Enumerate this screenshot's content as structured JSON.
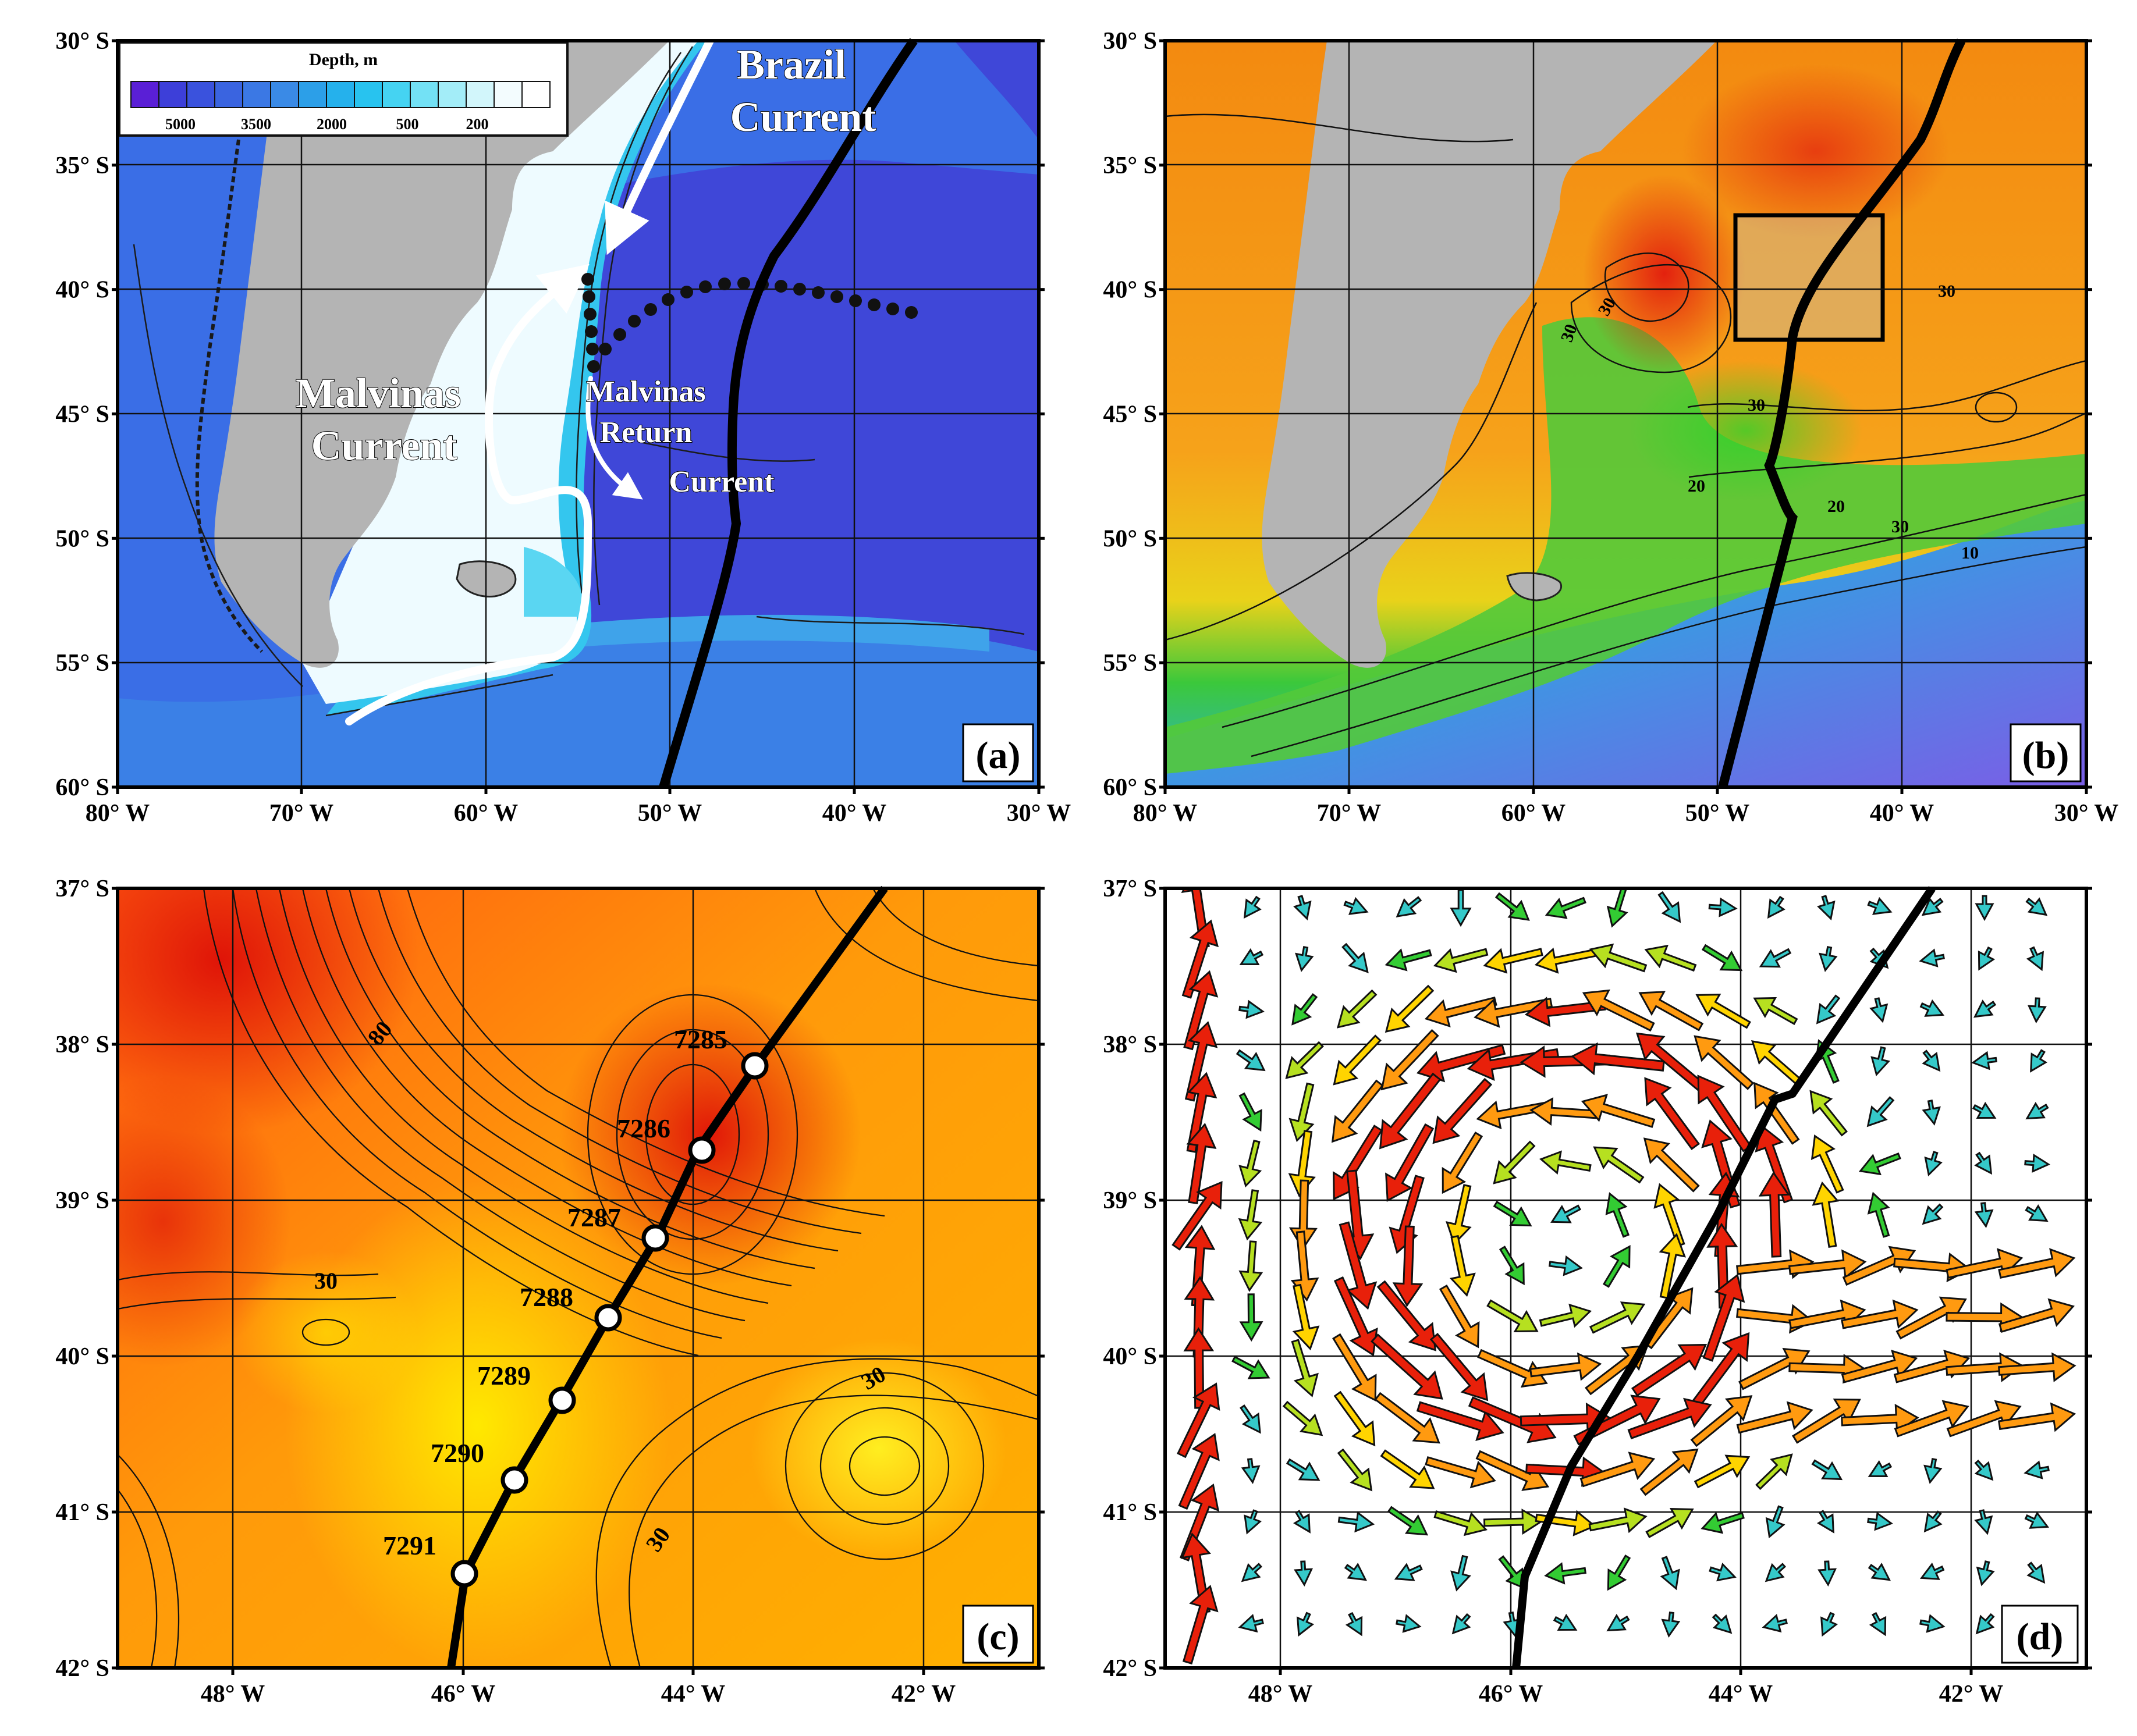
{
  "figure": {
    "panels": [
      {
        "id": "a",
        "label": "(a)",
        "lat_ticks": [
          "30° S",
          "35° S",
          "40° S",
          "45° S",
          "50° S",
          "55° S",
          "60° S"
        ],
        "lon_ticks": [
          "80° W",
          "70° W",
          "60° W",
          "50° W",
          "40° W",
          "30° W"
        ],
        "legend": {
          "title": "Depth, m",
          "labels": [
            "5000",
            "3500",
            "2000",
            "500",
            "200"
          ],
          "colors": [
            "#5a1fd6",
            "#3d3fd9",
            "#3a52dd",
            "#3a64e0",
            "#3b78e4",
            "#3a8ae6",
            "#2c9fe8",
            "#25b1ec",
            "#28c3ef",
            "#45d3f2",
            "#73e1f5",
            "#a3edf8",
            "#d2f6fb",
            "#f3fcfe",
            "#ffffff"
          ]
        },
        "annotations": {
          "brazil_current": [
            "Brazil",
            "Current"
          ],
          "malvinas_current": [
            "Malvinas",
            "Current"
          ],
          "malvinas_return_current": [
            "Malvinas",
            "Return",
            "Current"
          ]
        }
      },
      {
        "id": "b",
        "label": "(b)",
        "lat_ticks": [
          "30° S",
          "35° S",
          "40° S",
          "45° S",
          "50° S",
          "55° S",
          "60° S"
        ],
        "lon_ticks": [
          "80° W",
          "70° W",
          "60° W",
          "50° W",
          "40° W",
          "30° W"
        ],
        "contour_labels": [
          "30",
          "30",
          "30",
          "30",
          "20",
          "20",
          "30",
          "10"
        ]
      },
      {
        "id": "c",
        "label": "(c)",
        "lat_ticks": [
          "37° S",
          "38° S",
          "39° S",
          "40° S",
          "41° S",
          "42° S"
        ],
        "lon_ticks": [
          "48° W",
          "46° W",
          "44° W",
          "42° W"
        ],
        "contour_labels": [
          "80",
          "30",
          "30",
          "30"
        ],
        "stations": [
          "7285",
          "7286",
          "7287",
          "7288",
          "7289",
          "7290",
          "7291"
        ]
      },
      {
        "id": "d",
        "label": "(d)",
        "lat_ticks": [
          "37° S",
          "38° S",
          "39° S",
          "40° S",
          "41° S",
          "42° S"
        ],
        "lon_ticks": [
          "48° W",
          "46° W",
          "44° W",
          "42° W"
        ]
      }
    ],
    "colors": {
      "land": "#b4b4b4",
      "deep_ocean": "#3f47d8",
      "shelf": "#eefbff",
      "track": "#000000"
    }
  }
}
